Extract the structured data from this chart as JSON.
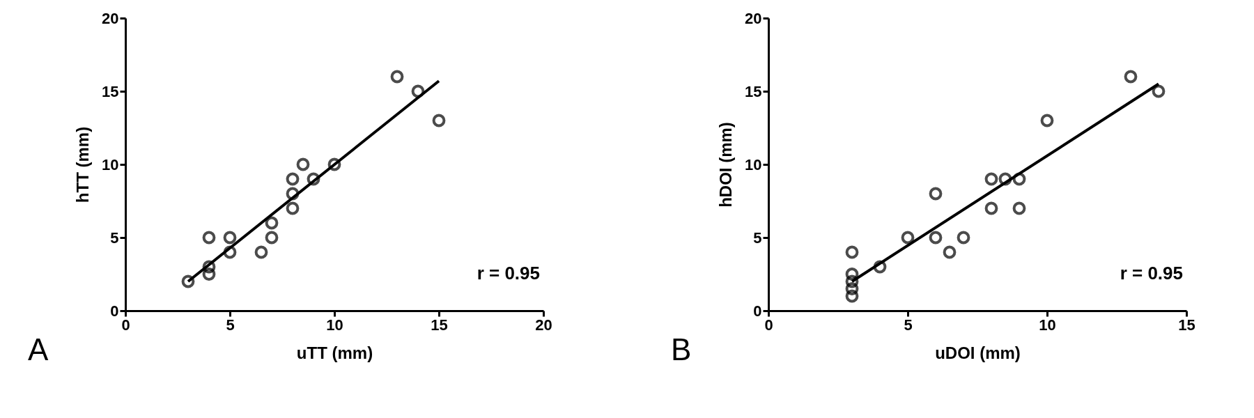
{
  "chart_data": [
    {
      "type": "scatter",
      "xlabel": "uTT (mm)",
      "ylabel": "hTT (mm)",
      "xlim": [
        0,
        20
      ],
      "ylim": [
        0,
        20
      ],
      "xticks": [
        0,
        5,
        10,
        15,
        20
      ],
      "yticks": [
        0,
        5,
        10,
        15,
        20
      ],
      "grid": false,
      "marker": "circle",
      "annotations": [
        "r = 0.95",
        "A"
      ],
      "series": [
        {
          "type": "scatter",
          "color": "#000000",
          "x": [
            3,
            4,
            4,
            4,
            5,
            5,
            6.5,
            7,
            7,
            8,
            8,
            8,
            8.5,
            9,
            10,
            13,
            14,
            15
          ],
          "values": [
            2,
            5,
            3,
            2.5,
            5,
            4,
            4,
            6,
            5,
            9,
            8,
            7,
            10,
            9,
            10,
            16,
            15,
            13
          ]
        },
        {
          "type": "line",
          "color": "#000000",
          "line_style": "solid",
          "marker": "none",
          "x": [
            3,
            15
          ],
          "values": [
            2,
            15.7
          ]
        }
      ]
    },
    {
      "type": "scatter",
      "xlabel": "uDOI (mm)",
      "ylabel": "hDOI (mm)",
      "xlim": [
        0,
        15
      ],
      "ylim": [
        0,
        20
      ],
      "xticks": [
        0,
        5,
        10,
        15
      ],
      "yticks": [
        0,
        5,
        10,
        15,
        20
      ],
      "grid": false,
      "marker": "circle",
      "annotations": [
        "r = 0.95",
        "B"
      ],
      "series": [
        {
          "type": "scatter",
          "color": "#000000",
          "x": [
            3,
            3,
            3,
            3,
            3,
            4,
            5,
            6,
            6,
            6.5,
            7,
            8,
            8,
            8.5,
            9,
            9,
            10,
            13,
            14
          ],
          "values": [
            4,
            2.5,
            2,
            1.5,
            1,
            3,
            5,
            8,
            5,
            4,
            5,
            9,
            7,
            9,
            9,
            7,
            13,
            16,
            15
          ]
        },
        {
          "type": "line",
          "color": "#000000",
          "line_style": "solid",
          "marker": "none",
          "x": [
            3,
            14
          ],
          "values": [
            2,
            15.5
          ]
        }
      ]
    }
  ]
}
